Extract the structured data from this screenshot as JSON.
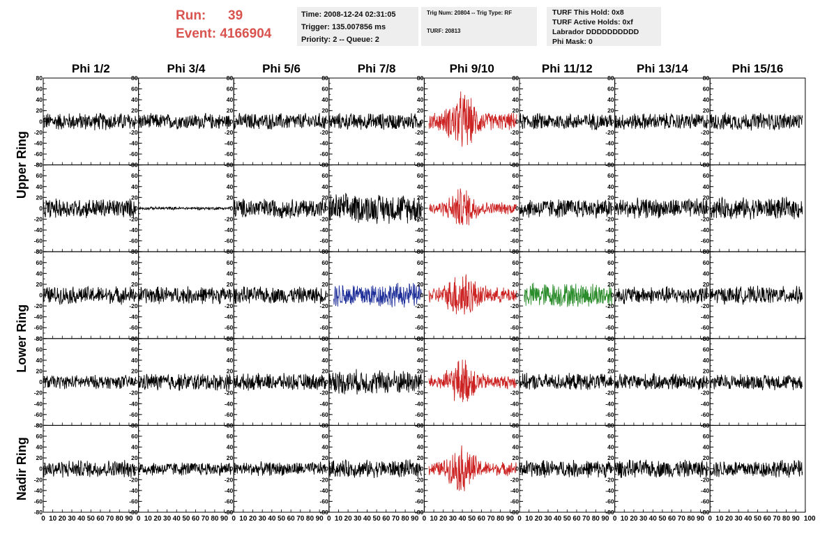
{
  "header": {
    "run_label": "Run:",
    "run_value": "39",
    "event_label": "Event:",
    "event_value": "4166904",
    "colors": {
      "run_text": "#d9534f",
      "box_bg": "#eeeeee"
    }
  },
  "info_boxes": {
    "time": "Time: 2008-12-24 02:31:05",
    "trigger": "Trigger: 135.007856 ms",
    "priority": "Priority: 2 -- Queue: 2",
    "trig_num": "Trig Num: 20804 -- Trig Type: RF",
    "turf_num": "TURF: 20813",
    "turf_this_hold": "TURF This Hold: 0x8",
    "turf_active_holds": "TURF Active Holds: 0xf",
    "labrador": "Labrador DDDDDDDDDD",
    "phi_mask": "Phi Mask: 0"
  },
  "chart_data": {
    "type": "line",
    "title": "",
    "columns": [
      "Phi 1/2",
      "Phi 3/4",
      "Phi 5/6",
      "Phi 7/8",
      "Phi 9/10",
      "Phi 11/12",
      "Phi 13/14",
      "Phi 15/16"
    ],
    "ring_labels": [
      "Upper Ring",
      "Lower Ring",
      "Nadir Ring"
    ],
    "ring_row_spans": [
      [
        0,
        1
      ],
      [
        2,
        3
      ],
      [
        4,
        4
      ]
    ],
    "rows": 5,
    "xlim": [
      0,
      100
    ],
    "ylim": [
      -80,
      80
    ],
    "x_ticks": [
      0,
      10,
      20,
      30,
      40,
      50,
      60,
      70,
      80,
      90
    ],
    "y_ticks": [
      80,
      60,
      40,
      20,
      0,
      -20,
      -40,
      -60,
      -80
    ],
    "series_colors": {
      "black": "#000000",
      "red": "#cc2222",
      "blue": "#1f2f9a",
      "green": "#2a8c2a"
    },
    "panels": [
      [
        "black",
        "black",
        "black",
        "black",
        "red",
        "black",
        "black",
        "black"
      ],
      [
        "black",
        "black",
        "black",
        "black",
        "red",
        "black",
        "black",
        "black"
      ],
      [
        "black",
        "black",
        "black",
        "blue",
        "red",
        "green",
        "black",
        "black"
      ],
      [
        "black",
        "black",
        "black",
        "black",
        "red",
        "black",
        "black",
        "black"
      ],
      [
        "black",
        "black",
        "black",
        "black",
        "red",
        "black",
        "black",
        "black"
      ]
    ],
    "amplitudes": [
      [
        18,
        16,
        17,
        17,
        50,
        17,
        17,
        18
      ],
      [
        20,
        3,
        20,
        30,
        35,
        20,
        20,
        22
      ],
      [
        18,
        18,
        17,
        25,
        45,
        25,
        18,
        18
      ],
      [
        14,
        18,
        17,
        25,
        40,
        17,
        17,
        16
      ],
      [
        18,
        14,
        14,
        18,
        40,
        18,
        18,
        18
      ]
    ],
    "pulse_panels": [
      [
        0,
        4
      ],
      [
        1,
        4
      ],
      [
        2,
        4
      ],
      [
        3,
        4
      ],
      [
        4,
        4
      ]
    ]
  }
}
